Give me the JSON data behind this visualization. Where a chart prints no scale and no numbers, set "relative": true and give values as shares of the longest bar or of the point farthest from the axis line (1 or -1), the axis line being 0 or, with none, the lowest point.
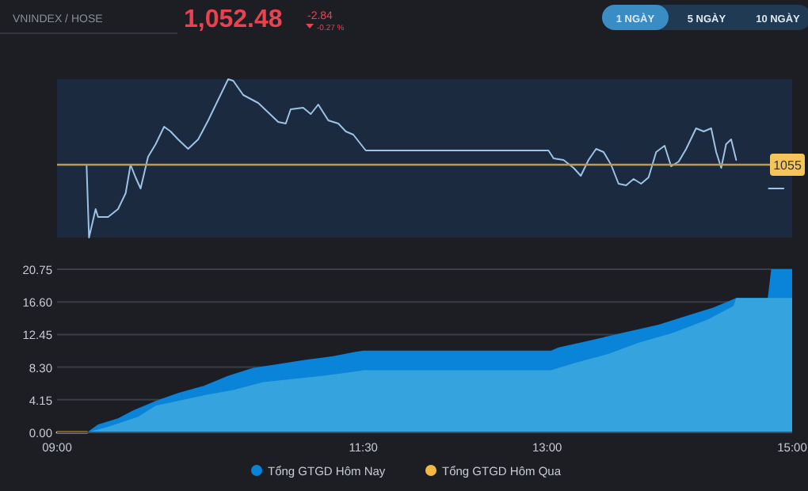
{
  "chart_data": [
    {
      "type": "line",
      "relative": true,
      "xlim": [
        9,
        15
      ],
      "annotations": [
        "VNINDEX / HOSE",
        "1,052.48",
        "-2.84",
        "-0.27 %",
        "1 NGÀY",
        "5 NGÀY",
        "10 NGÀY",
        "1055"
      ],
      "ref_lines": [
        {
          "axis": "y",
          "value": 0.46,
          "color": "#b89a5a"
        }
      ],
      "series": [
        {
          "color": "#9cc3e6",
          "x": [
            9.241,
            9.261,
            9.315,
            9.335,
            9.417,
            9.498,
            9.56,
            9.6,
            9.641,
            9.682,
            9.743,
            9.805,
            9.874,
            9.927,
            9.988,
            10.07,
            10.152,
            10.234,
            10.315,
            10.397,
            10.438,
            10.52,
            10.642,
            10.724,
            10.805,
            10.867,
            10.907,
            11.009,
            11.071,
            11.132,
            11.214,
            11.296,
            11.357,
            11.418,
            11.52,
            13.011,
            13.053,
            13.134,
            13.216,
            13.275,
            13.338,
            13.4,
            13.461,
            13.522,
            13.583,
            13.645,
            13.706,
            13.767,
            13.828,
            13.89,
            13.959,
            14.012,
            14.074,
            14.135,
            14.216,
            14.278,
            14.339,
            14.38,
            14.421,
            14.461,
            14.502,
            14.543,
            14.7,
            14.797,
            14.809,
            14.93
          ],
          "values": [
            0.46,
            0,
            0.18,
            0.13,
            0.13,
            0.18,
            0.28,
            0.46,
            0.38,
            0.31,
            0.51,
            0.59,
            0.7,
            0.67,
            0.62,
            0.56,
            0.62,
            0.74,
            0.87,
            1,
            0.99,
            0.9,
            0.85,
            0.79,
            0.73,
            0.72,
            0.81,
            0.82,
            0.78,
            0.84,
            0.74,
            0.72,
            0.67,
            0.65,
            0.55,
            0.55,
            0.5,
            0.49,
            0.44,
            0.39,
            0.49,
            0.56,
            0.54,
            0.46,
            0.34,
            0.33,
            0.37,
            0.34,
            0.38,
            0.54,
            0.58,
            0.45,
            0.48,
            0.56,
            0.69,
            0.67,
            0.69,
            0.54,
            0.44,
            0.59,
            0.62,
            0.49,
            null,
            null,
            0.31,
            0.31
          ]
        }
      ]
    },
    {
      "type": "area",
      "xlim": [
        9,
        15
      ],
      "ylim": [
        0,
        20.75
      ],
      "yticks": [
        {
          "value": 0,
          "label": "0.00"
        },
        {
          "value": 4.15,
          "label": "4.15"
        },
        {
          "value": 8.3,
          "label": "8.30"
        },
        {
          "value": 12.45,
          "label": "12.45"
        },
        {
          "value": 16.6,
          "label": "16.60"
        },
        {
          "value": 20.75,
          "label": "20.75"
        }
      ],
      "grid": "y",
      "legend": "bottom",
      "xticks": [
        {
          "value": 9,
          "label": "09:00"
        },
        {
          "value": 11.5,
          "label": "11:30"
        },
        {
          "value": 13,
          "label": "13:00"
        },
        {
          "value": 15,
          "label": "15:00"
        }
      ],
      "series": [
        {
          "name": "Tổng GTGD Hôm Nay",
          "color": "#0a84d8",
          "x": [
            9.245,
            9.335,
            9.498,
            9.621,
            9.805,
            9.988,
            10.193,
            10.397,
            10.601,
            10.805,
            11.01,
            11.255,
            11.418,
            11.5,
            13.032,
            13.093,
            13.297,
            13.624,
            13.91,
            14.155,
            14.359,
            14.543,
            14.801,
            14.829,
            15
          ],
          "values": [
            0,
            1,
            1.8,
            2.8,
            4,
            5,
            5.9,
            7.2,
            8.2,
            8.7,
            9.2,
            9.7,
            10.2,
            10.4,
            10.4,
            10.8,
            11.5,
            12.7,
            13.7,
            14.9,
            15.9,
            17.1,
            17.1,
            20.75,
            20.75
          ]
        },
        {
          "color": "#35a4de",
          "x": [
            9.245,
            9.417,
            9.662,
            9.805,
            9.988,
            10.193,
            10.438,
            10.683,
            10.928,
            11.173,
            11.418,
            11.5,
            13.032,
            13.216,
            13.502,
            13.747,
            14.033,
            14.318,
            14.522,
            14.543,
            14.809,
            15
          ],
          "values": [
            0,
            0.7,
            2,
            3.4,
            4,
            4.7,
            5.4,
            6.4,
            6.8,
            7.2,
            7.7,
            7.9,
            7.9,
            8.8,
            10,
            11.4,
            12.7,
            14.4,
            16.1,
            17.1,
            17.1,
            17.1
          ]
        },
        {
          "name": "Tổng GTGD Hôm Qua",
          "type": "line",
          "color": "#f5b942",
          "x": [
            9,
            9.245
          ],
          "values": [
            0,
            0
          ]
        }
      ]
    }
  ]
}
